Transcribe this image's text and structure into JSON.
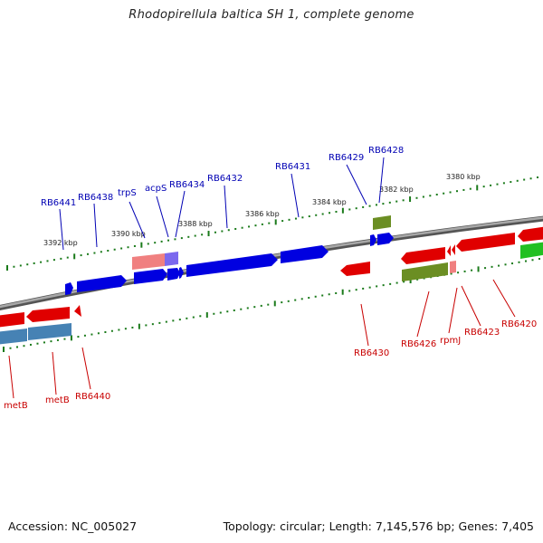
{
  "title": "Rhodopirellula baltica SH 1, complete genome",
  "footer": {
    "accession": "Accession: NC_005027",
    "summary": "Topology: circular; Length: 7,145,576 bp; Genes: 7,405"
  },
  "colors": {
    "forward": "#0000e0",
    "forward_label": "#0000b4",
    "reverse": "#e00000",
    "reverse_label": "#c80000",
    "olive": "#6b8e23",
    "steel": "#4682b4",
    "rna_pink": "#f08080",
    "lavender": "#7b68ee",
    "green": "#22c022",
    "backbone": "#888888",
    "tick": "#1a7a1a"
  },
  "tick_labels": [
    "3392 kbp",
    "3390 kbp",
    "3388 kbp",
    "3386 kbp",
    "3384 kbp",
    "3382 kbp",
    "3380 kbp"
  ],
  "forward_labels": [
    "RB6441",
    "RB6438",
    "trpS",
    "acpS",
    "RB6434",
    "RB6432",
    "RB6431",
    "RB6429",
    "RB6428"
  ],
  "reverse_labels": [
    "metB",
    "metB",
    "RB6440",
    "RB6430",
    "RB6426",
    "rpmJ",
    "RB6423",
    "RB6420"
  ]
}
